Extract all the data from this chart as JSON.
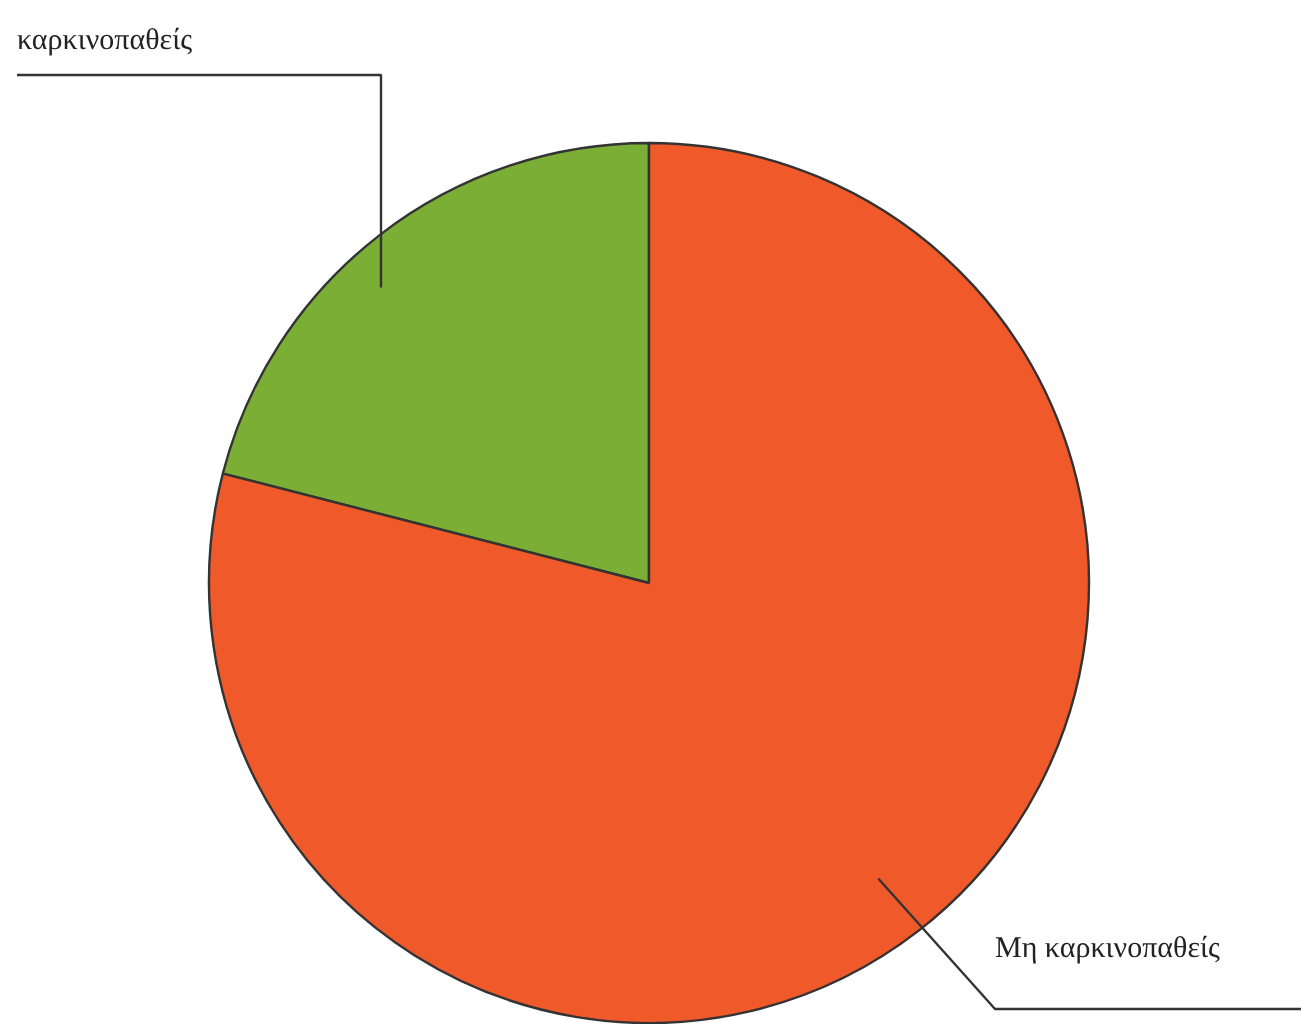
{
  "chart_data": {
    "type": "pie",
    "categories": [
      "καρκινοπαθείς",
      "Μη καρκινοπαθείς"
    ],
    "values": [
      21,
      79
    ],
    "colors": [
      "#7bae34",
      "#f05a2a"
    ]
  }
}
